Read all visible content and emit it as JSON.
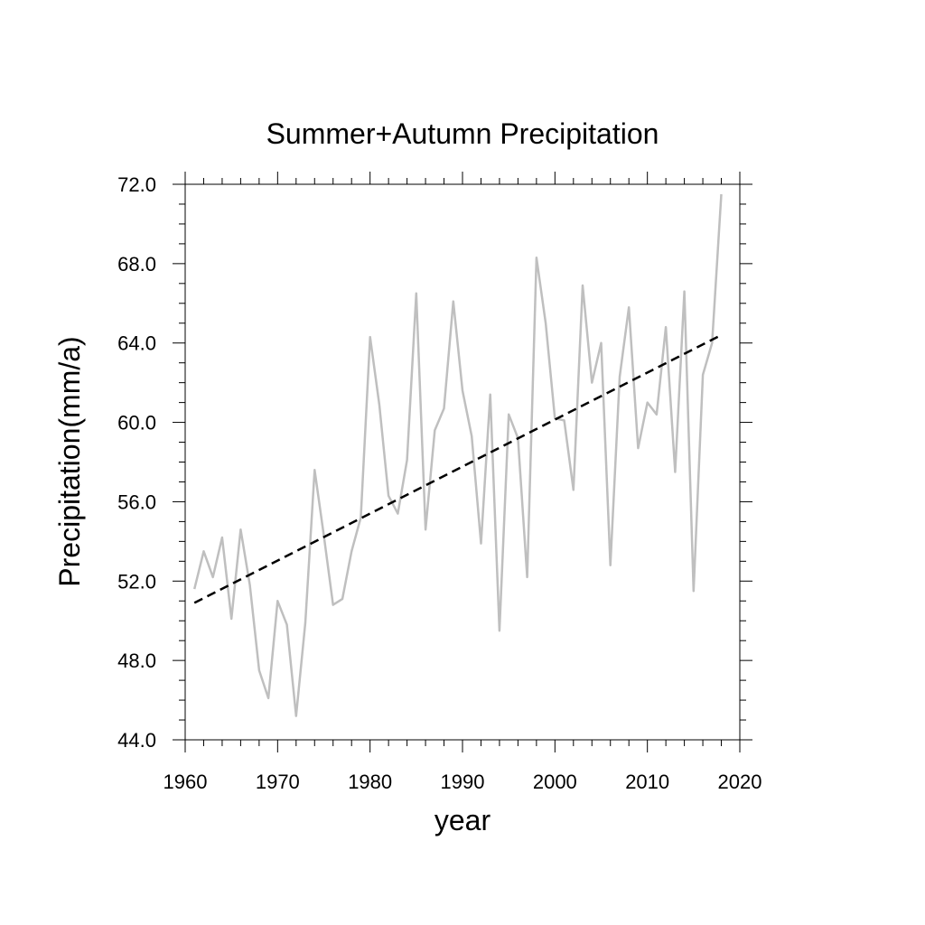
{
  "chart_data": {
    "type": "line",
    "title": "Summer+Autumn Precipitation",
    "xlabel": "year",
    "ylabel": "Precipitation(mm/a)",
    "xlim": [
      1960,
      2020
    ],
    "ylim": [
      44.0,
      72.0
    ],
    "x_ticks": [
      1960,
      1970,
      1980,
      1990,
      2000,
      2010,
      2020
    ],
    "x_tick_labels": [
      "1960",
      "1970",
      "1980",
      "1990",
      "2000",
      "2010",
      "2020"
    ],
    "y_ticks": [
      44,
      48,
      52,
      56,
      60,
      64,
      68,
      72
    ],
    "y_tick_labels": [
      "44.0",
      "48.0",
      "52.0",
      "56.0",
      "60.0",
      "64.0",
      "68.0",
      "72.0"
    ],
    "grid": false,
    "legend": "none",
    "series": [
      {
        "style": "solid",
        "color": "#bfbfbf",
        "x": [
          1961,
          1962,
          1963,
          1964,
          1965,
          1966,
          1967,
          1968,
          1969,
          1970,
          1971,
          1972,
          1973,
          1974,
          1975,
          1976,
          1977,
          1978,
          1979,
          1980,
          1981,
          1982,
          1983,
          1984,
          1985,
          1986,
          1987,
          1988,
          1989,
          1990,
          1991,
          1992,
          1993,
          1994,
          1995,
          1996,
          1997,
          1998,
          1999,
          2000,
          2001,
          2002,
          2003,
          2004,
          2005,
          2006,
          2007,
          2008,
          2009,
          2010,
          2011,
          2012,
          2013,
          2014,
          2015,
          2016,
          2017,
          2018
        ],
        "y": [
          51.6,
          53.5,
          52.2,
          54.2,
          50.1,
          54.6,
          51.8,
          47.5,
          46.1,
          51.0,
          49.8,
          45.2,
          49.9,
          57.6,
          54.3,
          50.8,
          51.1,
          53.5,
          55.2,
          64.3,
          60.9,
          56.3,
          55.4,
          58.1,
          66.5,
          54.6,
          59.6,
          60.7,
          66.1,
          61.6,
          59.3,
          53.9,
          61.4,
          49.5,
          60.4,
          59.2,
          52.2,
          68.3,
          65.0,
          60.2,
          60.1,
          56.6,
          66.9,
          62.0,
          64.0,
          52.8,
          62.3,
          65.8,
          58.7,
          61.0,
          60.4,
          64.8,
          57.5,
          66.6,
          51.5,
          62.4,
          64.0,
          71.5
        ]
      },
      {
        "style": "dashed",
        "color": "#000000",
        "x": [
          1961,
          2018
        ],
        "y": [
          50.9,
          64.4
        ]
      }
    ]
  }
}
